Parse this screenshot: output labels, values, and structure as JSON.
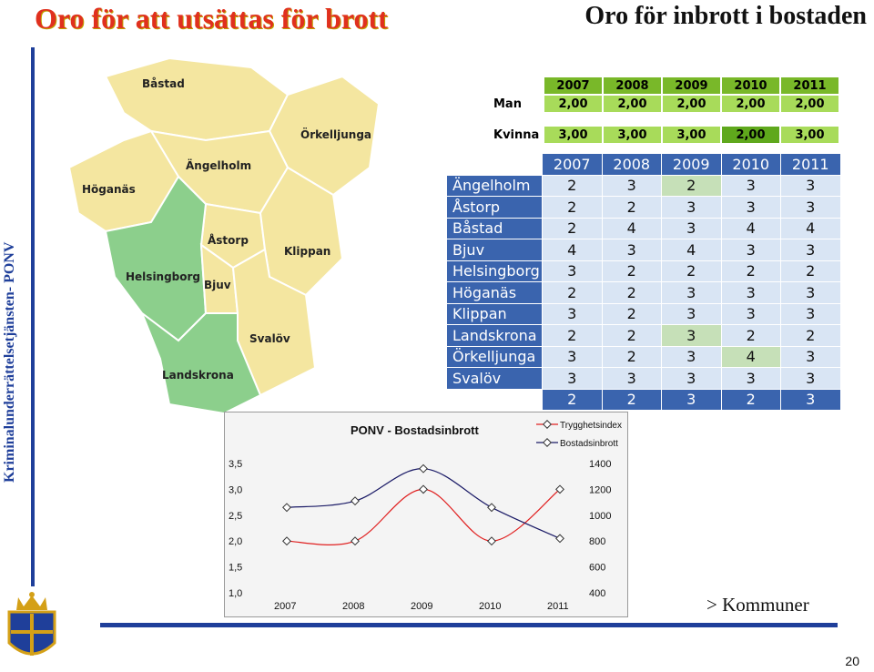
{
  "header": {
    "title_left": "Oro för att utsättas för brott",
    "title_right": "Oro för inbrott i bostaden"
  },
  "side_label": "Kriminalunderrättelsetjänsten- PONV",
  "footer": {
    "link_text": "> Kommuner",
    "page_number": "20"
  },
  "map": {
    "places": [
      "Båstad",
      "Örkelljunga",
      "Ängelholm",
      "Höganäs",
      "Åstorp",
      "Klippan",
      "Helsingborg",
      "Bjuv",
      "Svalöv",
      "Landskrona"
    ],
    "colors": {
      "land": "#f4e6a0",
      "highlight": "#8ccf8c",
      "border": "#ffffff"
    }
  },
  "gender_table": {
    "years": [
      "2007",
      "2008",
      "2009",
      "2010",
      "2011"
    ],
    "rows": [
      {
        "label": "Man",
        "values": [
          "2,00",
          "2,00",
          "2,00",
          "2,00",
          "2,00"
        ]
      },
      {
        "label": "Kvinna",
        "values": [
          "3,00",
          "3,00",
          "3,00",
          "2,00",
          "3,00"
        ]
      }
    ]
  },
  "kommun_table": {
    "years": [
      "2007",
      "2008",
      "2009",
      "2010",
      "2011"
    ],
    "rows": [
      {
        "name": "Ängelholm",
        "values": [
          "2",
          "3",
          "2",
          "3",
          "3"
        ]
      },
      {
        "name": "Åstorp",
        "values": [
          "2",
          "2",
          "3",
          "3",
          "3"
        ]
      },
      {
        "name": "Båstad",
        "values": [
          "2",
          "4",
          "3",
          "4",
          "4"
        ]
      },
      {
        "name": "Bjuv",
        "values": [
          "4",
          "3",
          "4",
          "3",
          "3"
        ]
      },
      {
        "name": "Helsingborg",
        "values": [
          "3",
          "2",
          "2",
          "2",
          "2"
        ]
      },
      {
        "name": "Höganäs",
        "values": [
          "2",
          "2",
          "3",
          "3",
          "3"
        ]
      },
      {
        "name": "Klippan",
        "values": [
          "3",
          "2",
          "3",
          "3",
          "3"
        ]
      },
      {
        "name": "Landskrona",
        "values": [
          "2",
          "2",
          "3",
          "2",
          "2"
        ]
      },
      {
        "name": "Örkelljunga",
        "values": [
          "3",
          "2",
          "3",
          "4",
          "3"
        ]
      },
      {
        "name": "Svalöv",
        "values": [
          "3",
          "3",
          "3",
          "3",
          "3"
        ]
      }
    ],
    "total": [
      "2",
      "2",
      "3",
      "2",
      "3"
    ],
    "colors": {
      "header": "#3a64ae",
      "cell": "#d9e5f4",
      "cell_alt": "#c6e0b8"
    }
  },
  "chart_data": {
    "type": "line",
    "title": "PONV - Bostadsinbrott",
    "x": [
      "2007",
      "2008",
      "2009",
      "2010",
      "2011"
    ],
    "ylim": [
      1.0,
      3.5
    ],
    "y_ticks": [
      "3,5",
      "3,0",
      "2,5",
      "2,0",
      "1,5",
      "1,0"
    ],
    "y2lim": [
      400,
      1400
    ],
    "y2_ticks": [
      "1400",
      "1200",
      "1000",
      "800",
      "600",
      "400"
    ],
    "legend_position": "top-right",
    "series": [
      {
        "name": "Trygghetsindex",
        "axis": "left",
        "color": "#e02020",
        "values": [
          2.0,
          2.0,
          3.0,
          2.0,
          3.0
        ]
      },
      {
        "name": "Bostadsinbrott",
        "axis": "right",
        "color": "#1a1a66",
        "values": [
          1060,
          1110,
          1360,
          1060,
          820
        ]
      }
    ]
  }
}
